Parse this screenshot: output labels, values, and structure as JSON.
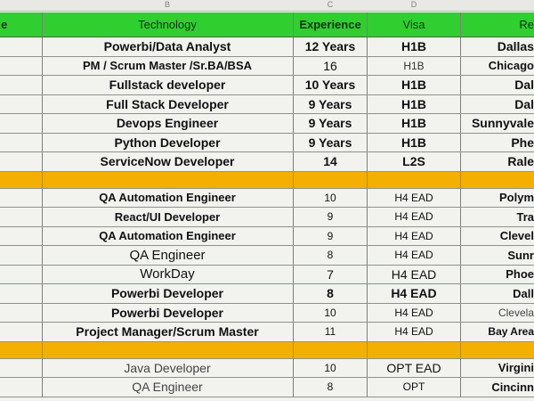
{
  "column_letters": [
    "B",
    "C",
    "D"
  ],
  "header": {
    "col0": "e",
    "technology": "Technology",
    "experience": "Experience",
    "visa": "Visa",
    "location": "Re"
  },
  "rows": [
    {
      "tech": "Powerbi/Data Analyst",
      "exp": "12 Years",
      "visa": "H1B",
      "loc": "Dallas"
    },
    {
      "tech": "PM / Scrum Master /Sr.BA/BSA",
      "exp": "16",
      "visa": "H1B",
      "loc": "Chicago"
    },
    {
      "tech": "Fullstack developer",
      "exp": "10 Years",
      "visa": "H1B",
      "loc": "Dal"
    },
    {
      "tech": "Full Stack Developer",
      "exp": "9 Years",
      "visa": "H1B",
      "loc": "Dal"
    },
    {
      "tech": "Devops Engineer",
      "exp": "9 Years",
      "visa": "H1B",
      "loc": "Sunnyvale"
    },
    {
      "tech": "Python Developer",
      "exp": "9 Years",
      "visa": "H1B",
      "loc": "Phe"
    },
    {
      "tech": "ServiceNow Developer",
      "exp": "14",
      "visa": "L2S",
      "loc": "Rale"
    },
    {
      "tech": "QA Automation Engineer",
      "exp": "10",
      "visa": "H4 EAD",
      "loc": "Polym"
    },
    {
      "tech": "React/UI Developer",
      "exp": "9",
      "visa": "H4 EAD",
      "loc": "Tra"
    },
    {
      "tech": "QA Automation Engineer",
      "exp": "9",
      "visa": "H4 EAD",
      "loc": "Clevel"
    },
    {
      "tech": "QA Engineer",
      "exp": "8",
      "visa": "H4 EAD",
      "loc": "Sunr"
    },
    {
      "tech": "WorkDay",
      "exp": "7",
      "visa": "H4 EAD",
      "loc": "Phoe"
    },
    {
      "tech": "Powerbi Developer",
      "exp": "8",
      "visa": "H4 EAD",
      "loc": "Dall"
    },
    {
      "tech": "Powerbi Developer",
      "exp": "10",
      "visa": "H4 EAD",
      "loc": "Clevela"
    },
    {
      "tech": "Project Manager/Scrum Master",
      "exp": "11",
      "visa": "H4 EAD",
      "loc": "Bay Area"
    },
    {
      "tech": "Java Developer",
      "exp": "10",
      "visa": "OPT EAD",
      "loc": "Virgini"
    },
    {
      "tech": "QA Engineer",
      "exp": "8",
      "visa": "OPT",
      "loc": "Cincinn"
    }
  ],
  "colors": {
    "header_green": "#2fcf2f",
    "separator_orange": "#f4b000"
  }
}
